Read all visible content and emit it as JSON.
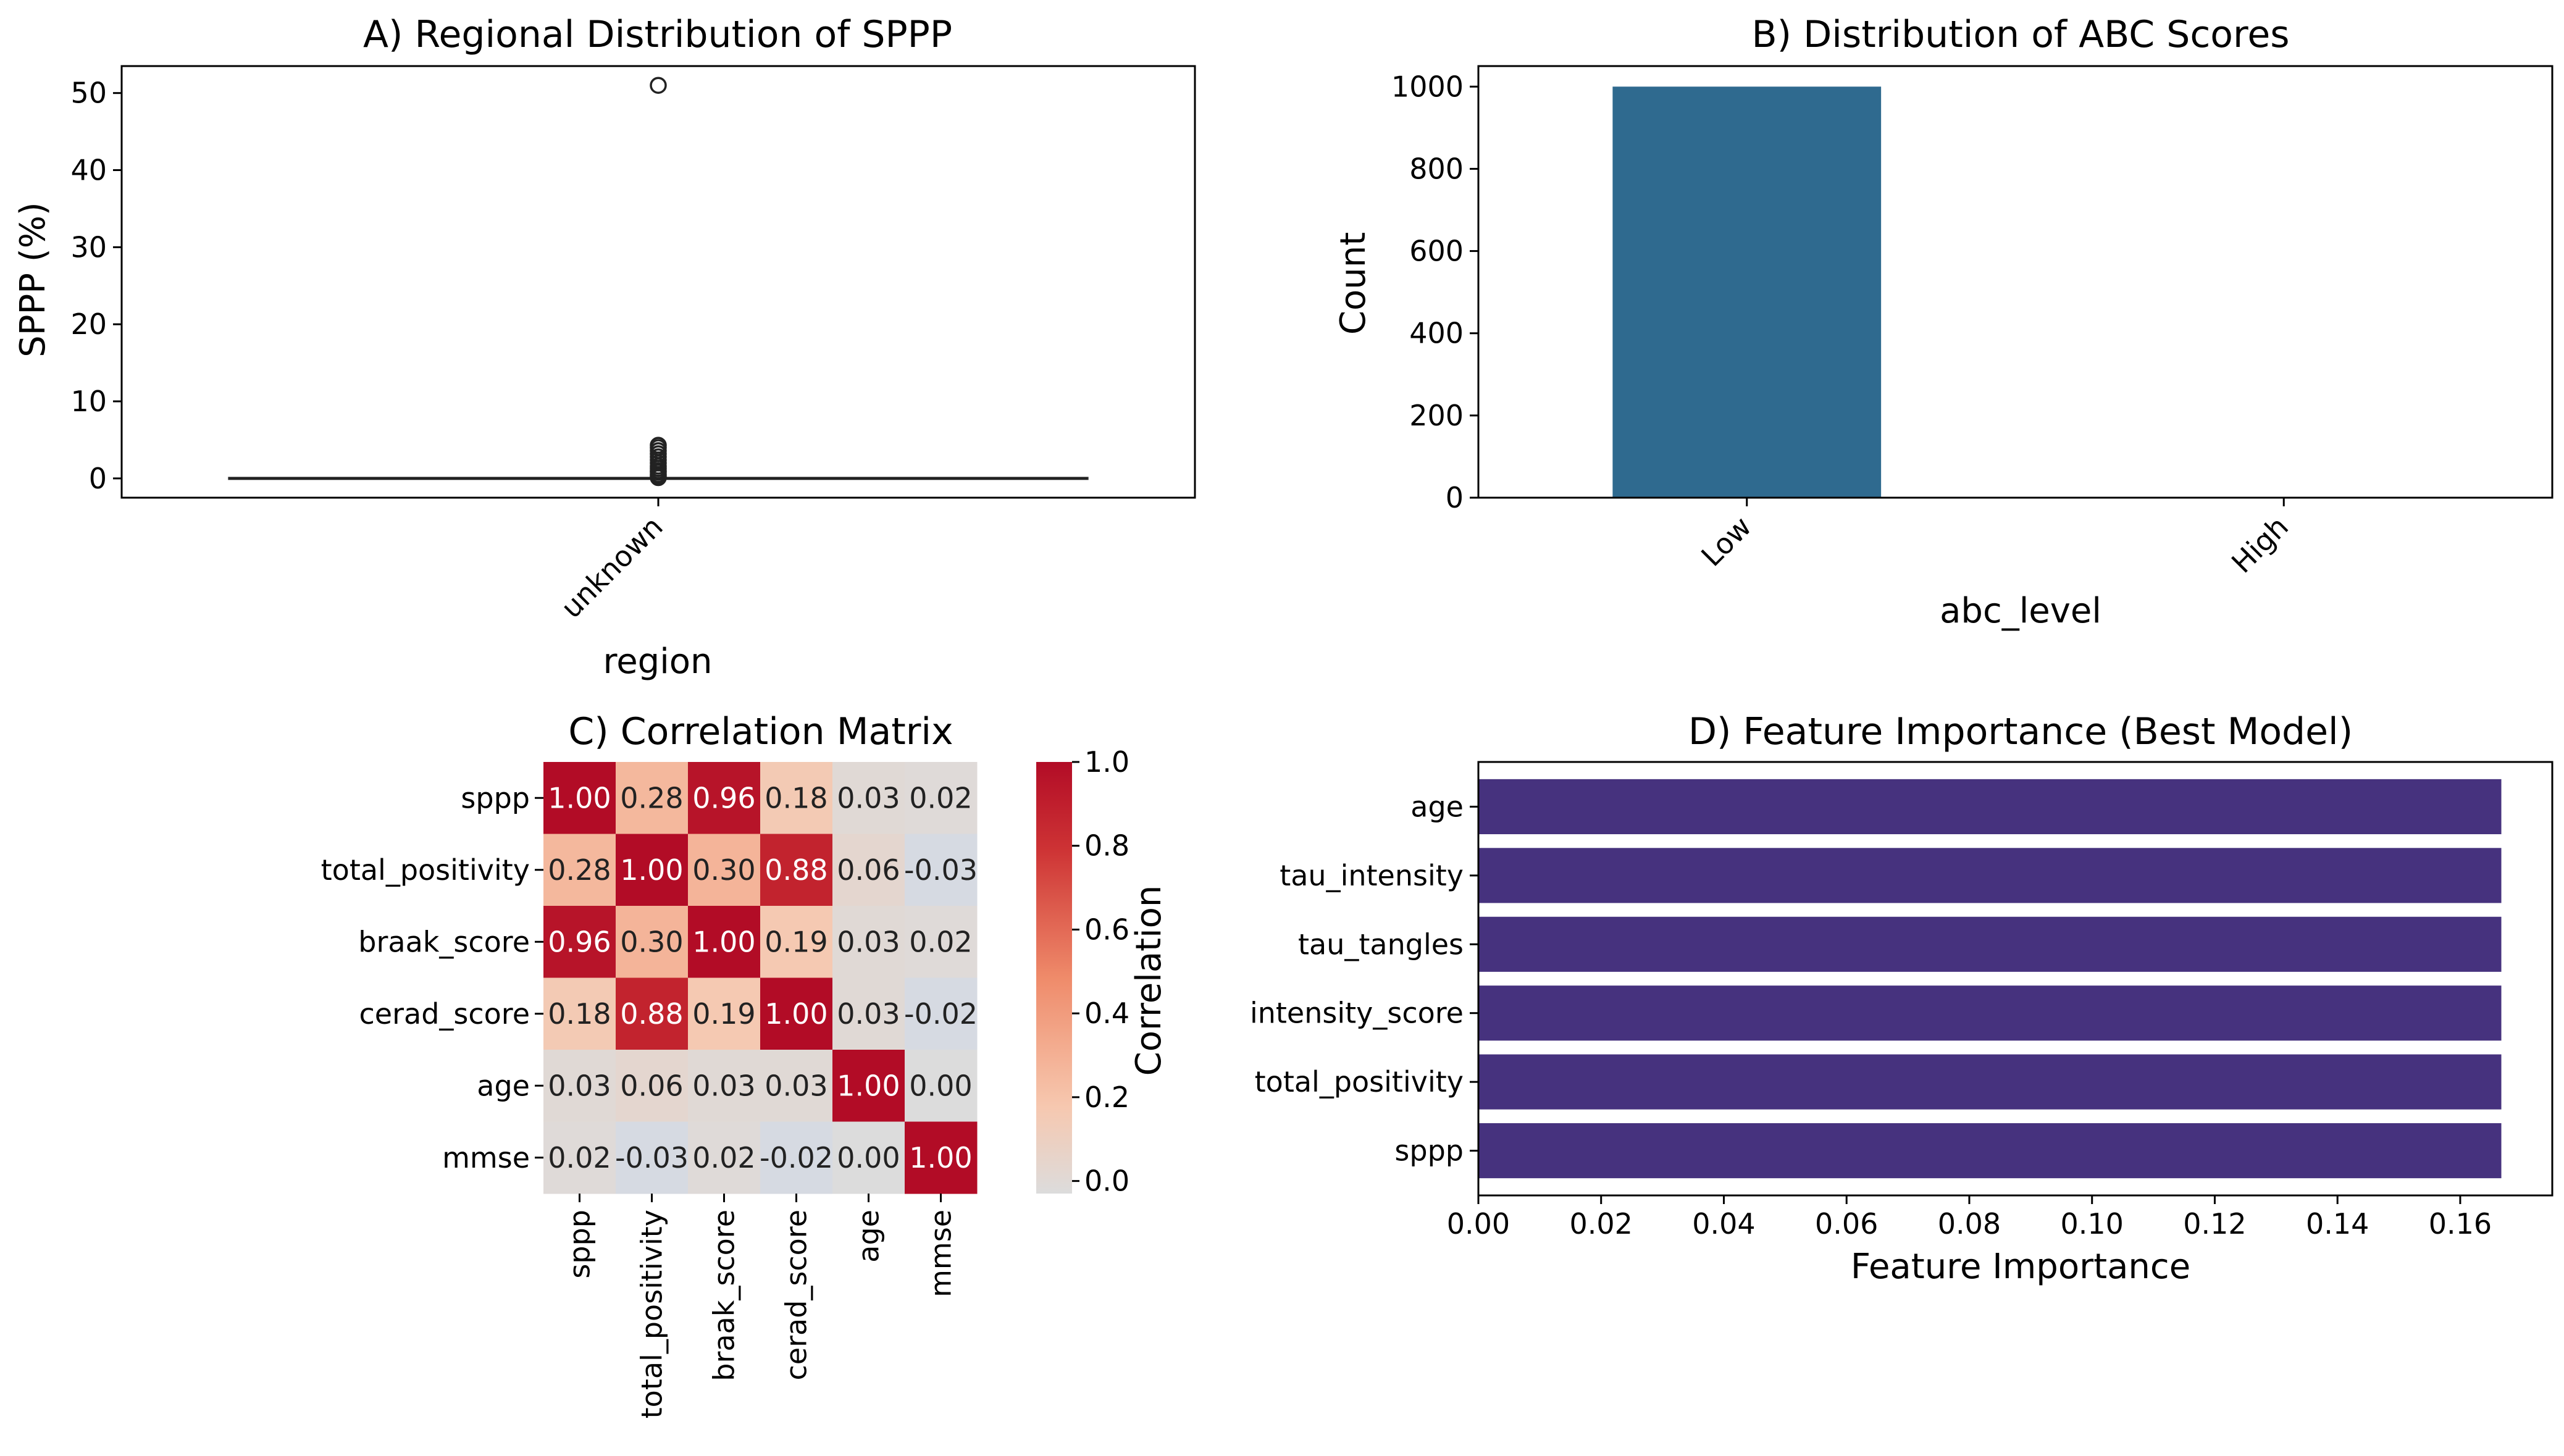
{
  "chart_data": [
    {
      "type": "box",
      "title": "A) Regional Distribution of SPPP",
      "xlabel": "region",
      "ylabel": "SPPP (%)",
      "categories": [
        "unknown"
      ],
      "yticks": [
        0,
        10,
        20,
        30,
        40,
        50
      ],
      "ylim": [
        -2.5,
        53.5
      ],
      "box": {
        "q1": 0,
        "median": 0,
        "q3": 0,
        "whisker_low": 0,
        "whisker_high": 0
      },
      "outliers": [
        0.1,
        0.3,
        0.5,
        0.8,
        1.0,
        1.3,
        1.6,
        2.0,
        2.4,
        2.8,
        3.2,
        3.6,
        4.0,
        4.3,
        51
      ]
    },
    {
      "type": "bar",
      "title": "B) Distribution of ABC Scores",
      "xlabel": "abc_level",
      "ylabel": "Count",
      "categories": [
        "Low",
        "High"
      ],
      "values": [
        1000,
        0
      ],
      "yticks": [
        0,
        200,
        400,
        600,
        800,
        1000
      ],
      "ylim": [
        0,
        1050
      ],
      "color": "#2f6a8f"
    },
    {
      "type": "heatmap",
      "title": "C) Correlation Matrix",
      "labels": [
        "sppp",
        "total_positivity",
        "braak_score",
        "cerad_score",
        "age",
        "mmse"
      ],
      "cell_text": [
        [
          "1.00",
          "0.28",
          "0.96",
          "0.18",
          "0.03",
          "0.02"
        ],
        [
          "0.28",
          "1.00",
          "0.30",
          "0.88",
          "0.06",
          "-0.03"
        ],
        [
          "0.96",
          "0.30",
          "1.00",
          "0.19",
          "0.03",
          "0.02"
        ],
        [
          "0.18",
          "0.88",
          "0.19",
          "1.00",
          "0.03",
          "-0.02"
        ],
        [
          "0.03",
          "0.06",
          "0.03",
          "0.03",
          "1.00",
          "0.00"
        ],
        [
          "0.02",
          "-0.03",
          "0.02",
          "-0.02",
          "0.00",
          "1.00"
        ]
      ],
      "values": [
        [
          1.0,
          0.28,
          0.96,
          0.18,
          0.03,
          0.02
        ],
        [
          0.28,
          1.0,
          0.3,
          0.88,
          0.06,
          -0.03
        ],
        [
          0.96,
          0.3,
          1.0,
          0.19,
          0.03,
          0.02
        ],
        [
          0.18,
          0.88,
          0.19,
          1.0,
          0.03,
          -0.02
        ],
        [
          0.03,
          0.06,
          0.03,
          0.03,
          1.0,
          0.0
        ],
        [
          0.02,
          -0.03,
          0.02,
          -0.02,
          0.0,
          1.0
        ]
      ],
      "colorbar": {
        "label": "Correlation",
        "ticks": [
          "0.0",
          "0.2",
          "0.4",
          "0.6",
          "0.8",
          "1.0"
        ],
        "range": [
          -0.03,
          1.0
        ]
      }
    },
    {
      "type": "barh",
      "title": "D) Feature Importance (Best Model)",
      "xlabel": "Feature Importance",
      "ylabel": "",
      "categories": [
        "age",
        "tau_intensity",
        "tau_tangles",
        "intensity_score",
        "total_positivity",
        "sppp"
      ],
      "values": [
        0.1667,
        0.1667,
        0.1667,
        0.1667,
        0.1667,
        0.1667
      ],
      "xticks": [
        "0.00",
        "0.02",
        "0.04",
        "0.06",
        "0.08",
        "0.10",
        "0.12",
        "0.14",
        "0.16"
      ],
      "xlim": [
        0,
        0.175
      ],
      "color": "#46327e"
    }
  ]
}
